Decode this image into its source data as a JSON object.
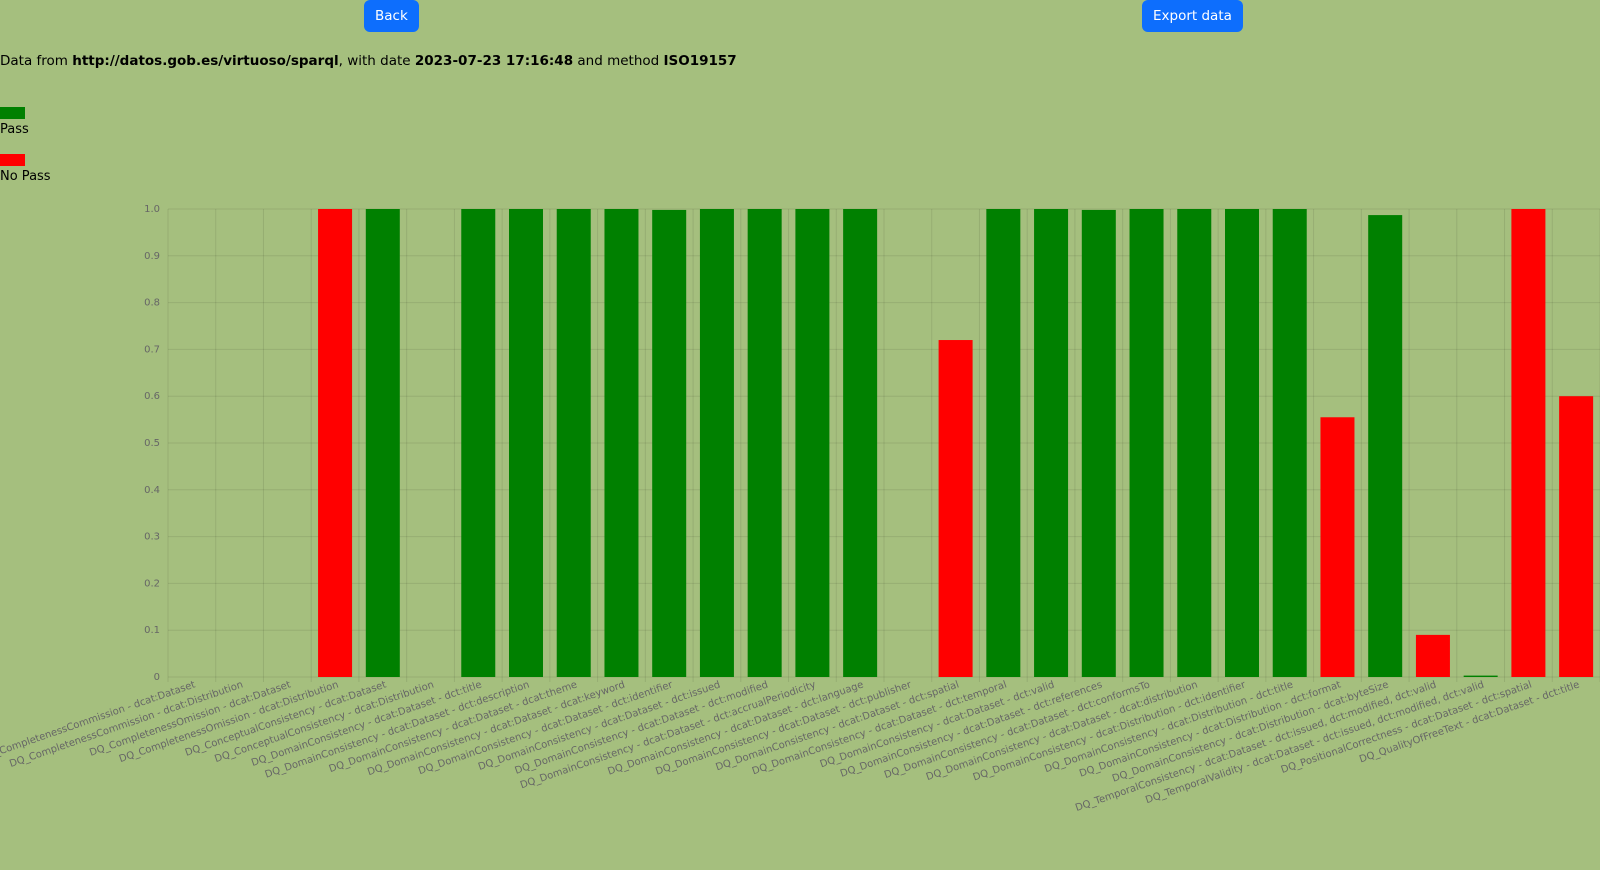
{
  "buttons": {
    "back_label": "Back",
    "export_label": "Export data"
  },
  "info": {
    "prefix": "Data from ",
    "endpoint": "http://datos.gob.es/virtuoso/sparql",
    "date_prefix": ", with date ",
    "date": "2023-07-23 17:16:48",
    "method_prefix": " and method ",
    "method": "ISO19157"
  },
  "legend": [
    {
      "label": "Pass",
      "color": "#008000"
    },
    {
      "label": "No Pass",
      "color": "#ff0000"
    }
  ],
  "colors": {
    "background": "#a5bf7e",
    "pass": "#008000",
    "no_pass": "#ff0000",
    "button": "#0d6efd"
  },
  "chart_data": {
    "type": "bar",
    "ylim": [
      0,
      1
    ],
    "yticks": [
      "0",
      "0.1",
      "0.2",
      "0.3",
      "0.4",
      "0.5",
      "0.6",
      "0.7",
      "0.8",
      "0.9",
      "1.0"
    ],
    "grid": true,
    "legend_placement": "top-left",
    "categories": [
      "DQ_CompletenessCommission - dcat:Dataset",
      "DQ_CompletenessCommission - dcat:Distribution",
      "DQ_CompletenessOmission - dcat:Dataset",
      "DQ_CompletenessOmission - dcat:Distribution",
      "DQ_ConceptualConsistency - dcat:Dataset",
      "DQ_ConceptualConsistency - dcat:Distribution",
      "DQ_DomainConsistency - dcat:Dataset - dct:title",
      "DQ_DomainConsistency - dcat:Dataset - dct:description",
      "DQ_DomainConsistency - dcat:Dataset - dcat:theme",
      "DQ_DomainConsistency - dcat:Dataset - dcat:keyword",
      "DQ_DomainConsistency - dcat:Dataset - dct:identifier",
      "DQ_DomainConsistency - dcat:Dataset - dct:issued",
      "DQ_DomainConsistency - dcat:Dataset - dct:modified",
      "DQ_DomainConsistency - dcat:Dataset - dct:accrualPeriodicity",
      "DQ_DomainConsistency - dcat:Dataset - dct:language",
      "DQ_DomainConsistency - dcat:Dataset - dct:publisher",
      "DQ_DomainConsistency - dcat:Dataset - dct:spatial",
      "DQ_DomainConsistency - dcat:Dataset - dct:temporal",
      "DQ_DomainConsistency - dcat:Dataset - dct:valid",
      "DQ_DomainConsistency - dcat:Dataset - dct:references",
      "DQ_DomainConsistency - dcat:Dataset - dct:conformsTo",
      "DQ_DomainConsistency - dcat:Dataset - dcat:distribution",
      "DQ_DomainConsistency - dcat:Distribution - dct:identifier",
      "DQ_DomainConsistency - dcat:Distribution - dct:title",
      "DQ_DomainConsistency - dcat:Distribution - dct:format",
      "DQ_DomainConsistency - dcat:Distribution - dcat:byteSize",
      "DQ_TemporalConsistency - dcat:Dataset - dct:issued, dct:modified, dct:valid",
      "DQ_TemporalValidity - dcat:Dataset - dct:issued, dct:modified, dct:valid",
      "DQ_PositionalCorrectness - dcat:Dataset - dct:spatial",
      "DQ_QualityOfFreeText - dcat:Dataset - dct:title"
    ],
    "values": [
      0,
      0,
      0,
      1.0,
      1.0,
      0,
      1.0,
      1.0,
      1.0,
      1.0,
      0.998,
      1.0,
      1.0,
      1.0,
      1.0,
      0,
      0.72,
      1.0,
      1.0,
      0.998,
      1.0,
      1.0,
      1.0,
      1.0,
      0.555,
      0.987,
      0.09,
      0.003,
      1.0,
      0.6
    ],
    "status": [
      "pass",
      "pass",
      "pass",
      "no_pass",
      "pass",
      "pass",
      "pass",
      "pass",
      "pass",
      "pass",
      "pass",
      "pass",
      "pass",
      "pass",
      "pass",
      "pass",
      "no_pass",
      "pass",
      "pass",
      "pass",
      "pass",
      "pass",
      "pass",
      "pass",
      "no_pass",
      "pass",
      "no_pass",
      "pass",
      "no_pass",
      "no_pass"
    ]
  }
}
